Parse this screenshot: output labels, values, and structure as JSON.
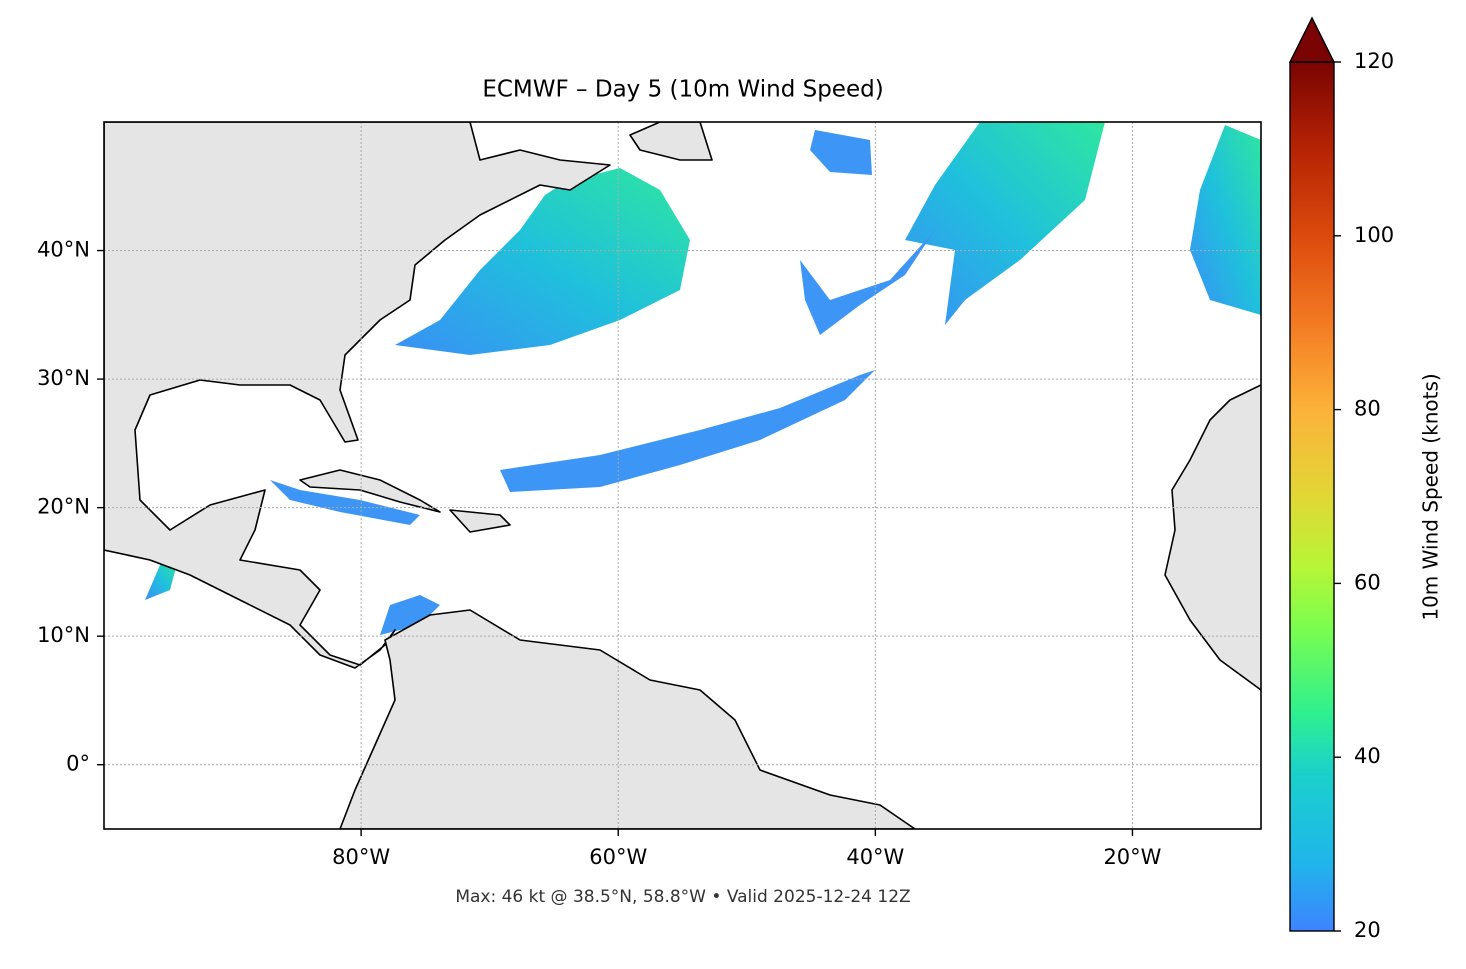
{
  "chart_data": {
    "type": "map",
    "title": "ECMWF – Day 5 (10m Wind Speed)",
    "footnote": "Max: 46 kt @ 38.5°N, 58.8°W • Valid 2025-12-24 12Z",
    "xlim": [
      -100,
      -10
    ],
    "ylim": [
      -5,
      50
    ],
    "xticks": [
      {
        "value": -80,
        "label": "80°W"
      },
      {
        "value": -60,
        "label": "60°W"
      },
      {
        "value": -40,
        "label": "40°W"
      },
      {
        "value": -20,
        "label": "20°W"
      }
    ],
    "yticks": [
      {
        "value": 0,
        "label": "0°"
      },
      {
        "value": 10,
        "label": "10°N"
      },
      {
        "value": 20,
        "label": "20°N"
      },
      {
        "value": 30,
        "label": "30°N"
      },
      {
        "value": 40,
        "label": "40°N"
      }
    ],
    "grid": true,
    "colorbar": {
      "label": "10m Wind Speed (knots)",
      "lim": [
        20,
        120
      ],
      "ticks": [
        20,
        40,
        60,
        80,
        100,
        120
      ],
      "extend": "max"
    }
  }
}
